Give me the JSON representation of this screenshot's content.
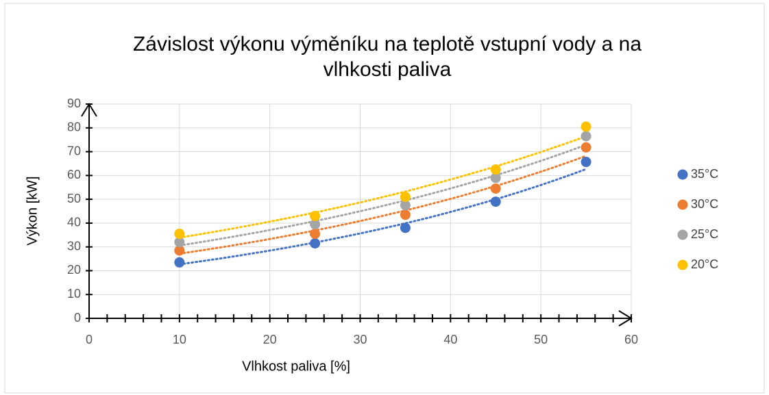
{
  "chart_data": {
    "type": "scatter",
    "title": [
      "Závislost výkonu výměníku na teplotě vstupní vody a na",
      "vlhkosti paliva"
    ],
    "x_label": "Vlhkost paliva [%]",
    "y_label": "Výkon [kW]",
    "x": [
      10,
      25,
      35,
      45,
      55
    ],
    "series": [
      {
        "name": "35°C",
        "color": "#4472c4",
        "values": [
          23.5,
          31.5,
          38,
          49,
          65.7
        ]
      },
      {
        "name": "30°C",
        "color": "#ed7d31",
        "values": [
          28.5,
          35.5,
          43.5,
          54.5,
          71.8
        ]
      },
      {
        "name": "25°C",
        "color": "#a5a5a5",
        "values": [
          32,
          39.5,
          47.5,
          59,
          76.5
        ]
      },
      {
        "name": "20°C",
        "color": "#ffc000",
        "values": [
          35.5,
          43,
          51,
          62.5,
          80.5
        ]
      }
    ],
    "xlim": [
      0,
      60
    ],
    "xticks": [
      0,
      10,
      20,
      30,
      40,
      50,
      60
    ],
    "ylim": [
      0,
      90
    ],
    "yticks": [
      0,
      10,
      20,
      30,
      40,
      50,
      60,
      70,
      80,
      90
    ],
    "grid": true,
    "trendline": "exponential",
    "legend": "right"
  }
}
